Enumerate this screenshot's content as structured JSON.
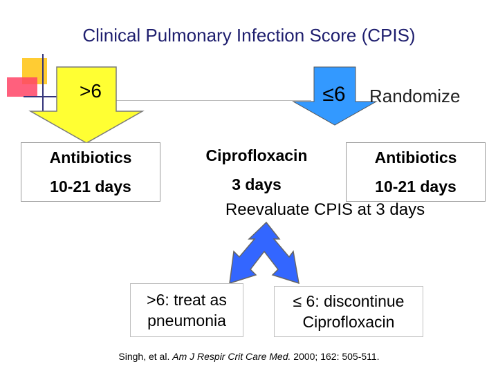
{
  "title": "Clinical Pulmonary Infection Score (CPIS)",
  "branch_left": {
    "threshold": ">6",
    "line1": "Antibiotics",
    "line2": "10-21 days"
  },
  "branch_right": {
    "threshold": "≤6",
    "action": "Randomize"
  },
  "middle": {
    "line1": "Ciprofloxacin",
    "line2": "3 days"
  },
  "right": {
    "line1": "Antibiotics",
    "line2": "10-21 days"
  },
  "reevaluate": "Reevaluate CPIS at 3 days",
  "outcome_left": {
    "line1": ">6: treat as",
    "line2": "pneumonia"
  },
  "outcome_right": {
    "line1": "≤ 6: discontinue",
    "line2": "Ciprofloxacin"
  },
  "citation": {
    "authors": "Singh, et al. ",
    "journal": "Am J Respir Crit Care Med.",
    "details": " 2000; 162: 505-511."
  },
  "colors": {
    "title": "#1e1e6e",
    "yellow_arrow": "#ffff33",
    "blue_arrow": "#3399ff",
    "split_arrow": "#3366ff"
  }
}
